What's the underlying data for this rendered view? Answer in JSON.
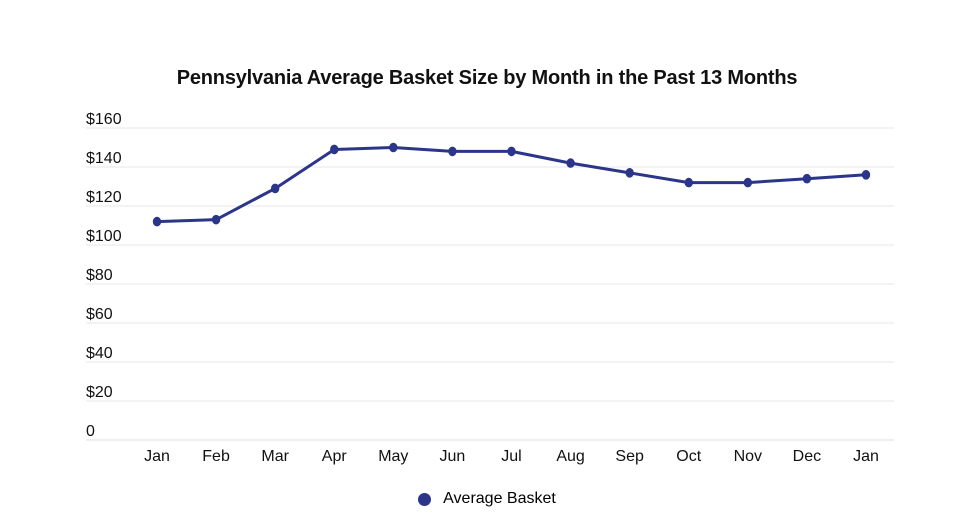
{
  "chart_data": {
    "type": "line",
    "title": "Pennsylvania Average Basket Size by Month in the Past 13 Months",
    "categories": [
      "Jan",
      "Feb",
      "Mar",
      "Apr",
      "May",
      "Jun",
      "Jul",
      "Aug",
      "Sep",
      "Oct",
      "Nov",
      "Dec",
      "Jan"
    ],
    "series": [
      {
        "name": "Average Basket",
        "color": "#2b3589",
        "values": [
          112,
          113,
          129,
          149,
          150,
          148,
          148,
          142,
          137,
          132,
          132,
          134,
          136
        ]
      }
    ],
    "xlabel": "",
    "ylabel": "",
    "ylim": [
      0,
      160
    ],
    "yticks": [
      {
        "value": 0,
        "label": "0"
      },
      {
        "value": 20,
        "label": "$20"
      },
      {
        "value": 40,
        "label": "$40"
      },
      {
        "value": 60,
        "label": "$60"
      },
      {
        "value": 80,
        "label": "$80"
      },
      {
        "value": 100,
        "label": "$100"
      },
      {
        "value": 120,
        "label": "$120"
      },
      {
        "value": 140,
        "label": "$140"
      },
      {
        "value": 160,
        "label": "$160"
      }
    ],
    "grid": true,
    "legend_position": "bottom-center"
  },
  "colors": {
    "line": "#2b3589",
    "marker": "#2b3589",
    "grid": "#e7e7e7",
    "axis": "#dddddd",
    "text": "#111111",
    "background": "#ffffff"
  }
}
